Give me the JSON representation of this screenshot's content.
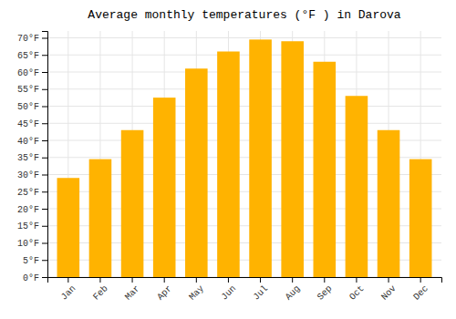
{
  "chart_data": {
    "type": "bar",
    "title": "Average monthly temperatures (°F ) in Darova",
    "categories": [
      "Jan",
      "Feb",
      "Mar",
      "Apr",
      "May",
      "Jun",
      "Jul",
      "Aug",
      "Sep",
      "Oct",
      "Nov",
      "Dec"
    ],
    "values": [
      29,
      34.5,
      43,
      52.5,
      61,
      66,
      69.5,
      69,
      63,
      53,
      43,
      34.5
    ],
    "color": "#FFB300",
    "ylim": [
      0,
      72
    ],
    "yticks": [
      {
        "value": 0,
        "label": "0°F"
      },
      {
        "value": 5,
        "label": "5°F"
      },
      {
        "value": 10,
        "label": "10°F"
      },
      {
        "value": 15,
        "label": "15°F"
      },
      {
        "value": 20,
        "label": "20°F"
      },
      {
        "value": 25,
        "label": "25°F"
      },
      {
        "value": 30,
        "label": "30°F"
      },
      {
        "value": 35,
        "label": "35°F"
      },
      {
        "value": 40,
        "label": "40°F"
      },
      {
        "value": 45,
        "label": "45°F"
      },
      {
        "value": 50,
        "label": "50°F"
      },
      {
        "value": 55,
        "label": "55°F"
      },
      {
        "value": 60,
        "label": "60°F"
      },
      {
        "value": 65,
        "label": "65°F"
      },
      {
        "value": 70,
        "label": "70°F"
      }
    ],
    "grid": true
  }
}
